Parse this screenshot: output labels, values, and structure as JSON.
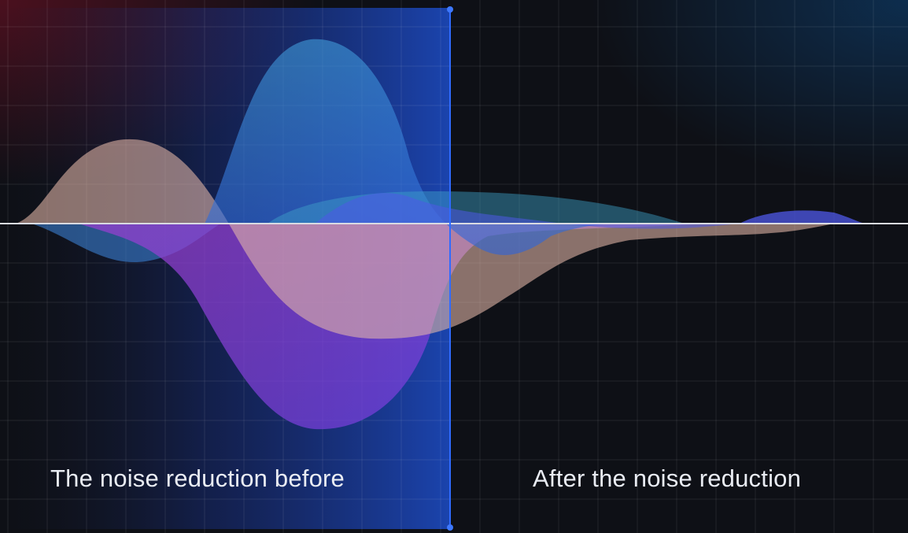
{
  "labels": {
    "before": "The noise reduction before",
    "after": "After the noise reduction"
  },
  "colors": {
    "background": "#0e1016",
    "before_panel": "#1e4fd6",
    "divider": "#2f6bff",
    "baseline": "#d9dbe2",
    "wave_peach": "#e6b8a8",
    "wave_purple": "#b24fd9",
    "wave_blue": "#3a8fd8",
    "wave_teal": "#3fa3c9",
    "wave_indigo": "#4f58e8"
  }
}
